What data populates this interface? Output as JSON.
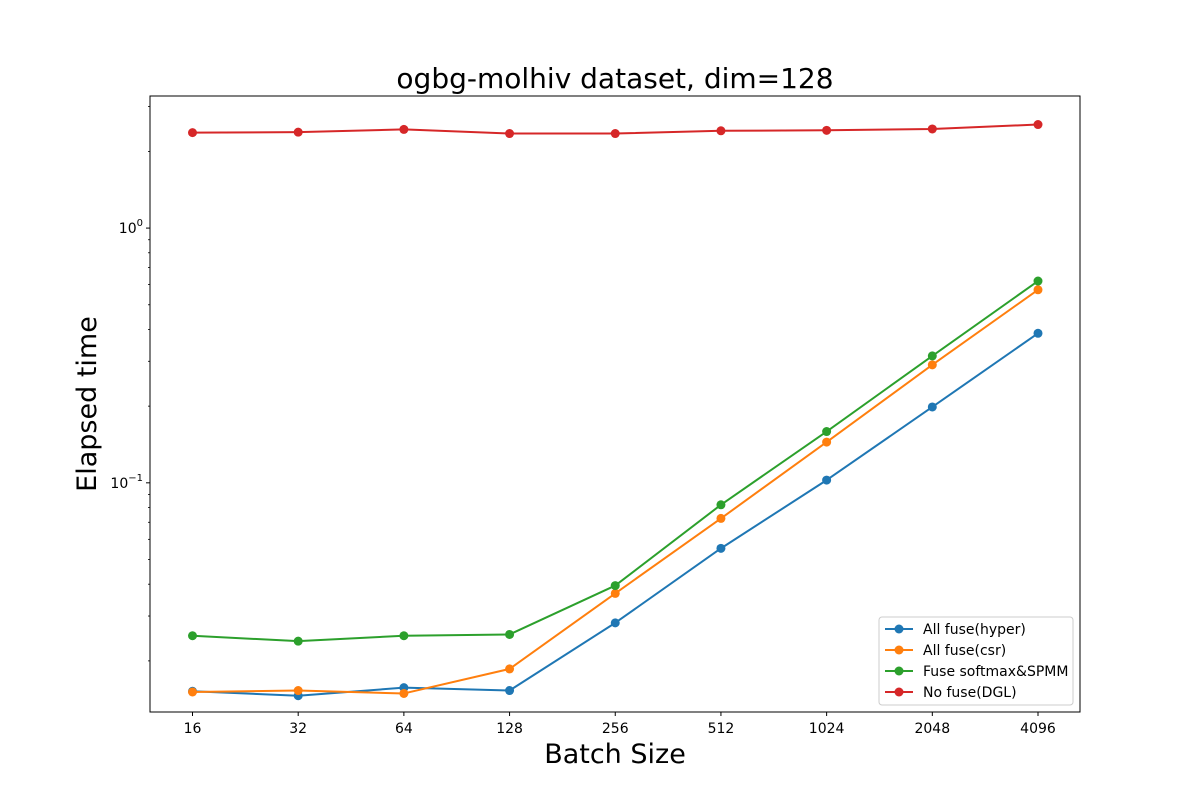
{
  "chart_data": {
    "type": "line",
    "title": "ogbg-molhiv dataset, dim=128",
    "xlabel": "Batch Size",
    "ylabel": "Elapsed time",
    "yscale": "log",
    "ylim": [
      0.0126,
      3.3
    ],
    "categories": [
      "16",
      "32",
      "64",
      "128",
      "256",
      "512",
      "1024",
      "2048",
      "4096"
    ],
    "y_major_ticks": [
      {
        "value": 1,
        "label_base": "10",
        "label_exp": "0"
      },
      {
        "value": 0.1,
        "label_base": "10",
        "label_exp": "−1"
      }
    ],
    "grid": false,
    "legend_position": "lower right",
    "series": [
      {
        "name": "All fuse(hyper)",
        "color": "#1f77b4",
        "values": [
          0.0152,
          0.0146,
          0.0157,
          0.0153,
          0.0282,
          0.0553,
          0.1025,
          0.1985,
          0.3865
        ]
      },
      {
        "name": "All fuse(csr)",
        "color": "#ff7f0e",
        "values": [
          0.0151,
          0.0153,
          0.0149,
          0.0186,
          0.0368,
          0.0725,
          0.1445,
          0.2905,
          0.5725
        ]
      },
      {
        "name": "Fuse softmax&SPMM",
        "color": "#2ca02c",
        "values": [
          0.0251,
          0.0239,
          0.0251,
          0.0254,
          0.0395,
          0.082,
          0.159,
          0.315,
          0.6195
        ]
      },
      {
        "name": "No fuse(DGL)",
        "color": "#d62728",
        "values": [
          2.37,
          2.38,
          2.44,
          2.35,
          2.35,
          2.41,
          2.42,
          2.45,
          2.55
        ]
      }
    ]
  }
}
